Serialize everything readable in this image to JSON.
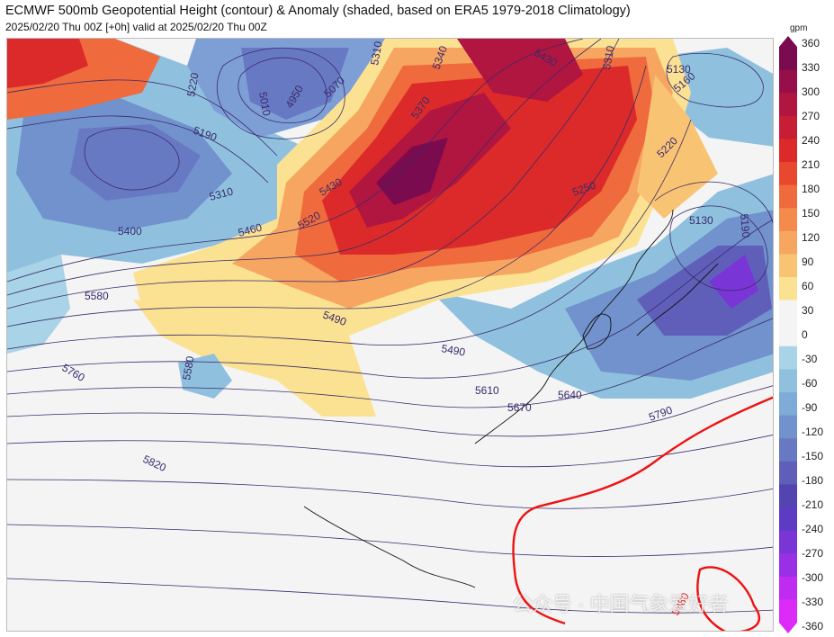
{
  "header": {
    "title": "ECMWF 500mb Geopotential Height (contour) & Anomaly (shaded, based on ERA5 1979-2018 Climatology)",
    "subtitle": "2025/02/20 Thu 00Z [+0h] valid at 2025/02/20 Thu 00Z"
  },
  "colorbar": {
    "unit": "gpm",
    "ticks": [
      "360",
      "330",
      "300",
      "270",
      "240",
      "210",
      "180",
      "150",
      "120",
      "90",
      "60",
      "30",
      "0",
      "-30",
      "-60",
      "-90",
      "-120",
      "-150",
      "-180",
      "-210",
      "-240",
      "-270",
      "-300",
      "-330",
      "-360"
    ],
    "colors": [
      "#7a0b4e",
      "#960f4a",
      "#b01640",
      "#c81e35",
      "#dc2a2a",
      "#e8482e",
      "#ef6a3c",
      "#f48a4c",
      "#f6a660",
      "#f8c474",
      "#fbe292",
      "#f4f4f4",
      "#f4f4f4",
      "#a9d3e6",
      "#8fc1df",
      "#7eabd7",
      "#7192cd",
      "#6879c4",
      "#5f5fba",
      "#5444b0",
      "#5d3bc2",
      "#7a35d6",
      "#9a30e6",
      "#bd2cf0",
      "#dc2af7"
    ]
  },
  "contour_labels": [
    "4950",
    "5010",
    "5070",
    "5130",
    "5130",
    "5160",
    "5190",
    "5220",
    "5250",
    "5310",
    "5310",
    "5310",
    "5340",
    "5370",
    "5430",
    "5430",
    "5400",
    "5460",
    "5490",
    "5490",
    "5520",
    "5580",
    "5580",
    "5610",
    "5640",
    "5670",
    "5760",
    "5790",
    "5820",
    "5880",
    "5190",
    "5220"
  ],
  "watermark": "公众号 · 中国气象爱好者"
}
